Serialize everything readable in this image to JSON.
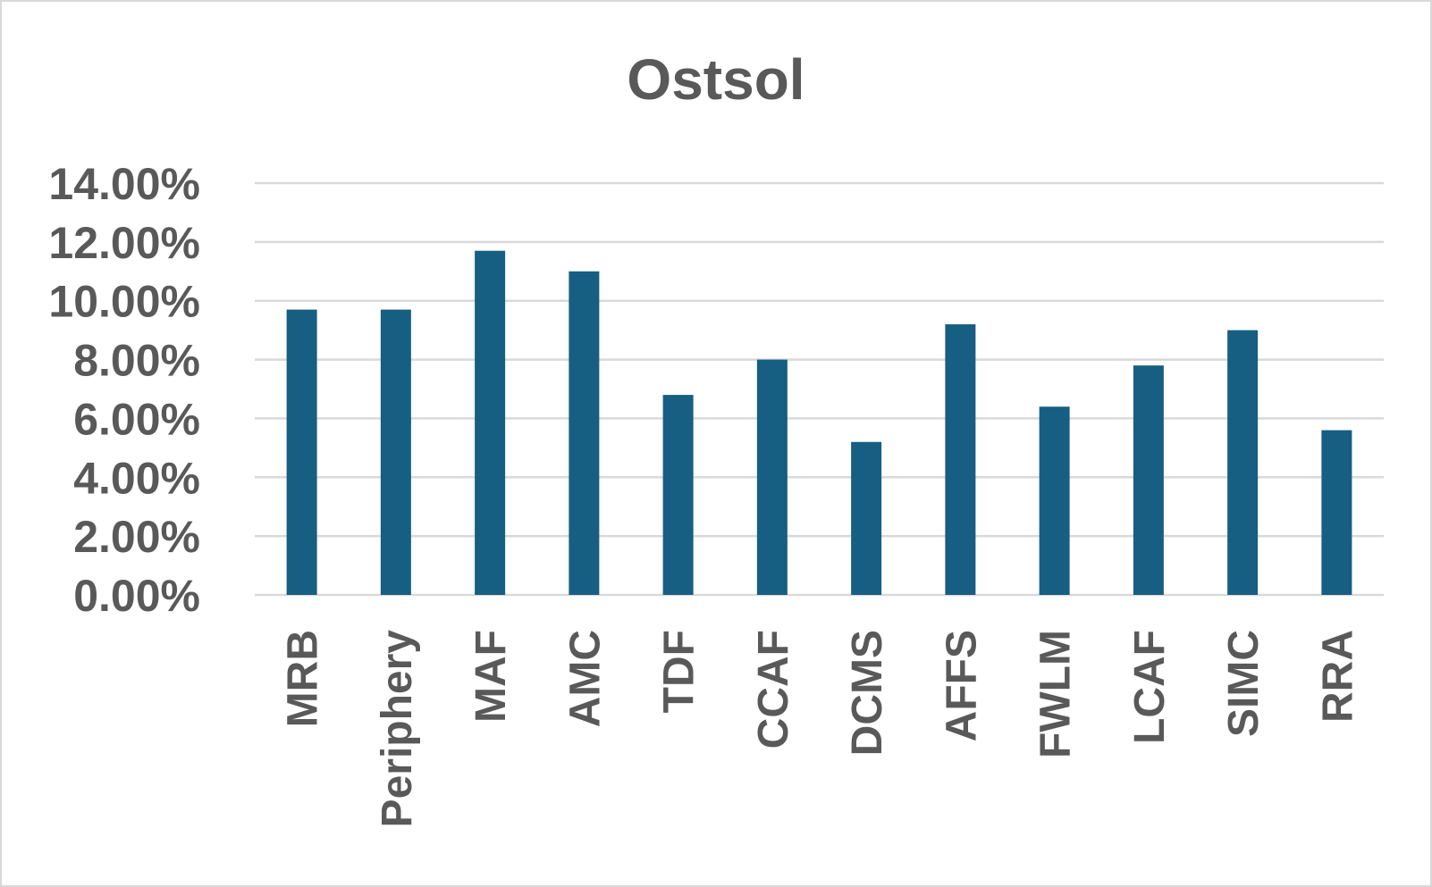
{
  "chart_data": {
    "type": "bar",
    "title": "Ostsol",
    "xlabel": "",
    "ylabel": "",
    "categories": [
      "MRB",
      "Periphery",
      "MAF",
      "AMC",
      "TDF",
      "CCAF",
      "DCMS",
      "AFFS",
      "FWLM",
      "LCAF",
      "SIMC",
      "RRA"
    ],
    "values": [
      9.7,
      9.7,
      11.7,
      11.0,
      6.8,
      8.0,
      5.2,
      9.2,
      6.4,
      7.8,
      9.0,
      5.6
    ],
    "value_format": "percent",
    "ylim": [
      0,
      14
    ],
    "yticks": [
      0,
      2,
      4,
      6,
      8,
      10,
      12,
      14
    ],
    "ytick_labels": [
      "0.00%",
      "2.00%",
      "4.00%",
      "6.00%",
      "8.00%",
      "10.00%",
      "12.00%",
      "14.00%"
    ],
    "grid": true,
    "legend": "none",
    "colors": {
      "bar": "#175e83",
      "grid": "#d9d9d9",
      "text": "#595959",
      "border": "#d9d9d9"
    }
  }
}
